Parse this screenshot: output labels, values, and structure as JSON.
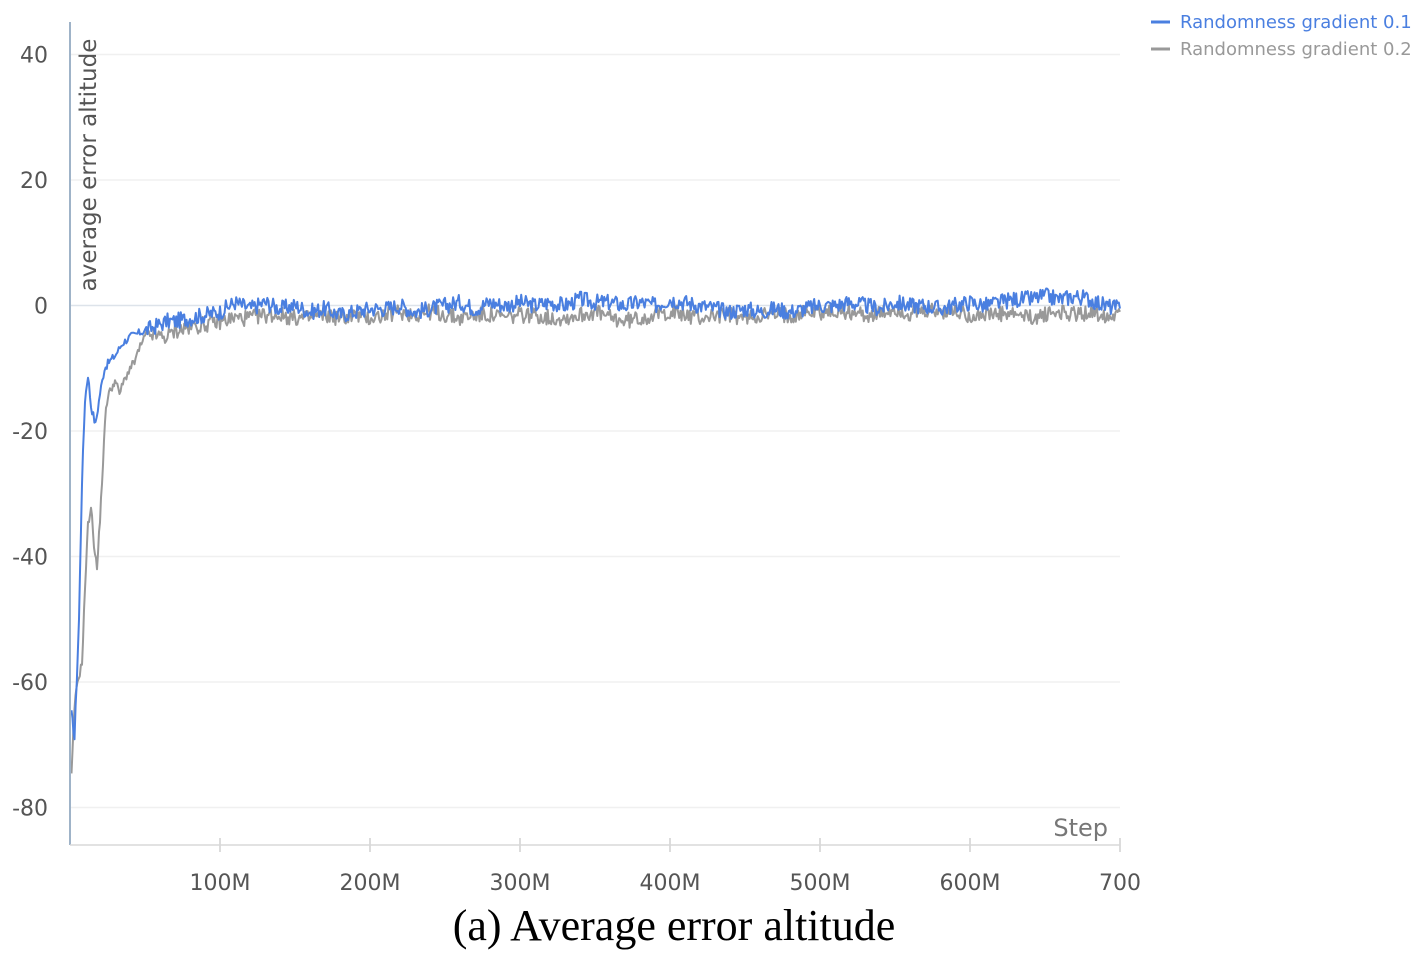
{
  "chart_data": {
    "type": "line",
    "caption": "(a) Average error altitude",
    "ylabel": "average error altitude",
    "xlabel": "Step",
    "ylim": [
      -85,
      45
    ],
    "xlim": [
      0,
      700
    ],
    "x_unit": "M",
    "yticks": [
      40,
      20,
      0,
      -20,
      -40,
      -60,
      -80
    ],
    "ytick_labels": [
      "40",
      "20",
      "0",
      "-20",
      "-40",
      "-60",
      "-80"
    ],
    "xticks": [
      100,
      200,
      300,
      400,
      500,
      600,
      700
    ],
    "xtick_labels": [
      "100M",
      "200M",
      "300M",
      "400M",
      "500M",
      "600M",
      "700"
    ],
    "grid": true,
    "legend_position": "top-right",
    "series": [
      {
        "name": "Randomness gradient 0.1",
        "color": "#4a7fe0",
        "x": [
          1,
          3,
          6,
          8,
          10,
          12,
          14,
          17,
          20,
          23,
          26,
          30,
          35,
          40,
          45,
          50,
          55,
          60,
          65,
          70,
          80,
          90,
          100,
          110,
          120,
          130,
          140,
          150,
          160,
          170,
          180,
          190,
          200,
          210,
          220,
          230,
          240,
          250,
          260,
          270,
          280,
          290,
          300,
          310,
          320,
          330,
          340,
          350,
          360,
          370,
          380,
          390,
          400,
          410,
          420,
          430,
          440,
          450,
          460,
          470,
          480,
          490,
          500,
          510,
          520,
          530,
          540,
          550,
          560,
          570,
          580,
          590,
          600,
          610,
          620,
          630,
          640,
          650,
          660,
          670,
          680,
          690,
          700
        ],
        "y": [
          -65,
          -69,
          -50,
          -28,
          -15,
          -11,
          -16,
          -19,
          -14,
          -10,
          -9,
          -8,
          -6,
          -5,
          -4.5,
          -4,
          -3.5,
          -3,
          -2.5,
          -2.5,
          -2,
          -1.5,
          -1,
          0.5,
          -0.5,
          0.5,
          -0.5,
          0,
          -1,
          -0.5,
          -1.5,
          -1,
          -0.5,
          -0.5,
          0,
          -1,
          -0.5,
          0,
          0.5,
          -0.5,
          0.5,
          0,
          0.5,
          0,
          0.5,
          0,
          1,
          0.5,
          0.5,
          0,
          0.5,
          0,
          1,
          0.5,
          0,
          -0.5,
          -1,
          -0.5,
          -1,
          -0.5,
          -1,
          -0.5,
          0,
          0,
          0.5,
          0,
          -0.5,
          0.5,
          0,
          0,
          -0.5,
          0,
          0.5,
          0,
          0.5,
          1,
          1,
          1.5,
          1,
          1.5,
          1,
          0,
          -0.5
        ]
      },
      {
        "name": "Randomness gradient 0.2",
        "color": "#999999",
        "x": [
          1,
          3,
          5,
          8,
          10,
          12,
          14,
          16,
          18,
          20,
          22,
          24,
          26,
          28,
          30,
          33,
          36,
          40,
          43,
          46,
          50,
          55,
          60,
          65,
          70,
          80,
          90,
          100,
          110,
          120,
          130,
          140,
          150,
          160,
          170,
          180,
          190,
          200,
          210,
          220,
          230,
          240,
          250,
          260,
          270,
          280,
          290,
          300,
          310,
          320,
          330,
          340,
          350,
          360,
          370,
          380,
          390,
          400,
          410,
          420,
          430,
          440,
          450,
          460,
          470,
          480,
          490,
          500,
          510,
          520,
          530,
          540,
          550,
          560,
          570,
          580,
          590,
          600,
          610,
          620,
          630,
          640,
          650,
          660,
          670,
          680,
          690,
          700
        ],
        "y": [
          -75,
          -64,
          -60,
          -57,
          -45,
          -35,
          -32,
          -38,
          -42,
          -34,
          -25,
          -16,
          -14,
          -13,
          -12,
          -14,
          -12,
          -10,
          -9,
          -7,
          -5,
          -4.5,
          -5,
          -5,
          -4,
          -3.5,
          -3,
          -2.5,
          -2,
          -2,
          -1.5,
          -1.5,
          -2,
          -2,
          -1.5,
          -2,
          -1.5,
          -2,
          -1.5,
          -1,
          -1.5,
          -1,
          -1.5,
          -2,
          -1.5,
          -1.5,
          -2,
          -1.5,
          -1.5,
          -2,
          -2,
          -1.5,
          -1,
          -2,
          -2.5,
          -2,
          -1.5,
          -1,
          -1.5,
          -2,
          -1.5,
          -1.5,
          -2,
          -1.5,
          -1.5,
          -1.5,
          -1,
          -1,
          -1,
          -1,
          -1.5,
          -1.5,
          -0.5,
          -1.5,
          -1,
          -1,
          -1,
          -1.5,
          -1.5,
          -1.5,
          -1.5,
          -2,
          -1.5,
          -1,
          -1.5,
          -1,
          -1.5,
          -1
        ]
      }
    ]
  }
}
